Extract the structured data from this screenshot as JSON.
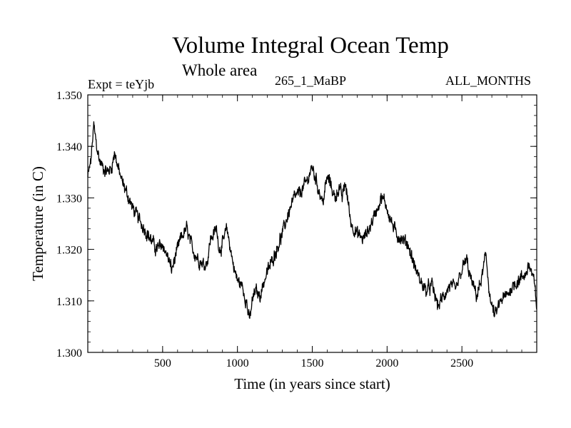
{
  "chart_data": {
    "type": "line",
    "title": "Volume Integral Ocean Temp",
    "subtitle": "Whole area",
    "annotations": {
      "left": "Expt = teYjb",
      "center": "265_1_MaBP",
      "right": "ALL_MONTHS"
    },
    "xlabel": "Time (in years since start)",
    "ylabel": "Temperature (in C)",
    "xlim": [
      0,
      3000
    ],
    "ylim": [
      1.3,
      1.35
    ],
    "xticks": [
      500,
      1000,
      1500,
      2000,
      2500
    ],
    "xtick_labels": [
      "500",
      "1000",
      "1500",
      "2000",
      "2500"
    ],
    "yticks": [
      1.3,
      1.31,
      1.32,
      1.33,
      1.34,
      1.35
    ],
    "ytick_labels": [
      "1.300",
      "1.310",
      "1.320",
      "1.330",
      "1.340",
      "1.350"
    ],
    "grid": false,
    "series": [
      {
        "name": "Volume integral ocean temperature",
        "x": [
          0,
          20,
          40,
          60,
          80,
          100,
          130,
          160,
          180,
          200,
          230,
          260,
          300,
          340,
          380,
          420,
          460,
          500,
          540,
          560,
          580,
          620,
          660,
          700,
          740,
          780,
          800,
          820,
          860,
          880,
          900,
          930,
          960,
          980,
          1000,
          1030,
          1060,
          1080,
          1100,
          1120,
          1150,
          1180,
          1220,
          1260,
          1300,
          1340,
          1380,
          1420,
          1460,
          1500,
          1540,
          1570,
          1600,
          1620,
          1650,
          1680,
          1700,
          1720,
          1760,
          1800,
          1840,
          1880,
          1920,
          1960,
          1990,
          2020,
          2060,
          2100,
          2140,
          2180,
          2220,
          2260,
          2300,
          2340,
          2380,
          2420,
          2460,
          2500,
          2530,
          2560,
          2600,
          2630,
          2660,
          2690,
          2720,
          2760,
          2800,
          2840,
          2880,
          2920,
          2950,
          2980,
          3000
        ],
        "values": [
          1.334,
          1.337,
          1.344,
          1.34,
          1.337,
          1.336,
          1.335,
          1.336,
          1.339,
          1.336,
          1.333,
          1.331,
          1.328,
          1.326,
          1.324,
          1.322,
          1.32,
          1.321,
          1.318,
          1.316,
          1.318,
          1.322,
          1.324,
          1.32,
          1.318,
          1.317,
          1.318,
          1.322,
          1.324,
          1.32,
          1.321,
          1.324,
          1.319,
          1.316,
          1.314,
          1.313,
          1.31,
          1.306,
          1.31,
          1.312,
          1.311,
          1.314,
          1.317,
          1.32,
          1.323,
          1.327,
          1.33,
          1.331,
          1.333,
          1.336,
          1.332,
          1.329,
          1.334,
          1.333,
          1.33,
          1.332,
          1.33,
          1.333,
          1.325,
          1.323,
          1.322,
          1.324,
          1.327,
          1.33,
          1.329,
          1.326,
          1.323,
          1.322,
          1.321,
          1.317,
          1.314,
          1.312,
          1.313,
          1.309,
          1.311,
          1.313,
          1.312,
          1.316,
          1.318,
          1.314,
          1.311,
          1.314,
          1.319,
          1.31,
          1.307,
          1.31,
          1.311,
          1.313,
          1.314,
          1.315,
          1.317,
          1.314,
          1.309
        ]
      }
    ]
  }
}
